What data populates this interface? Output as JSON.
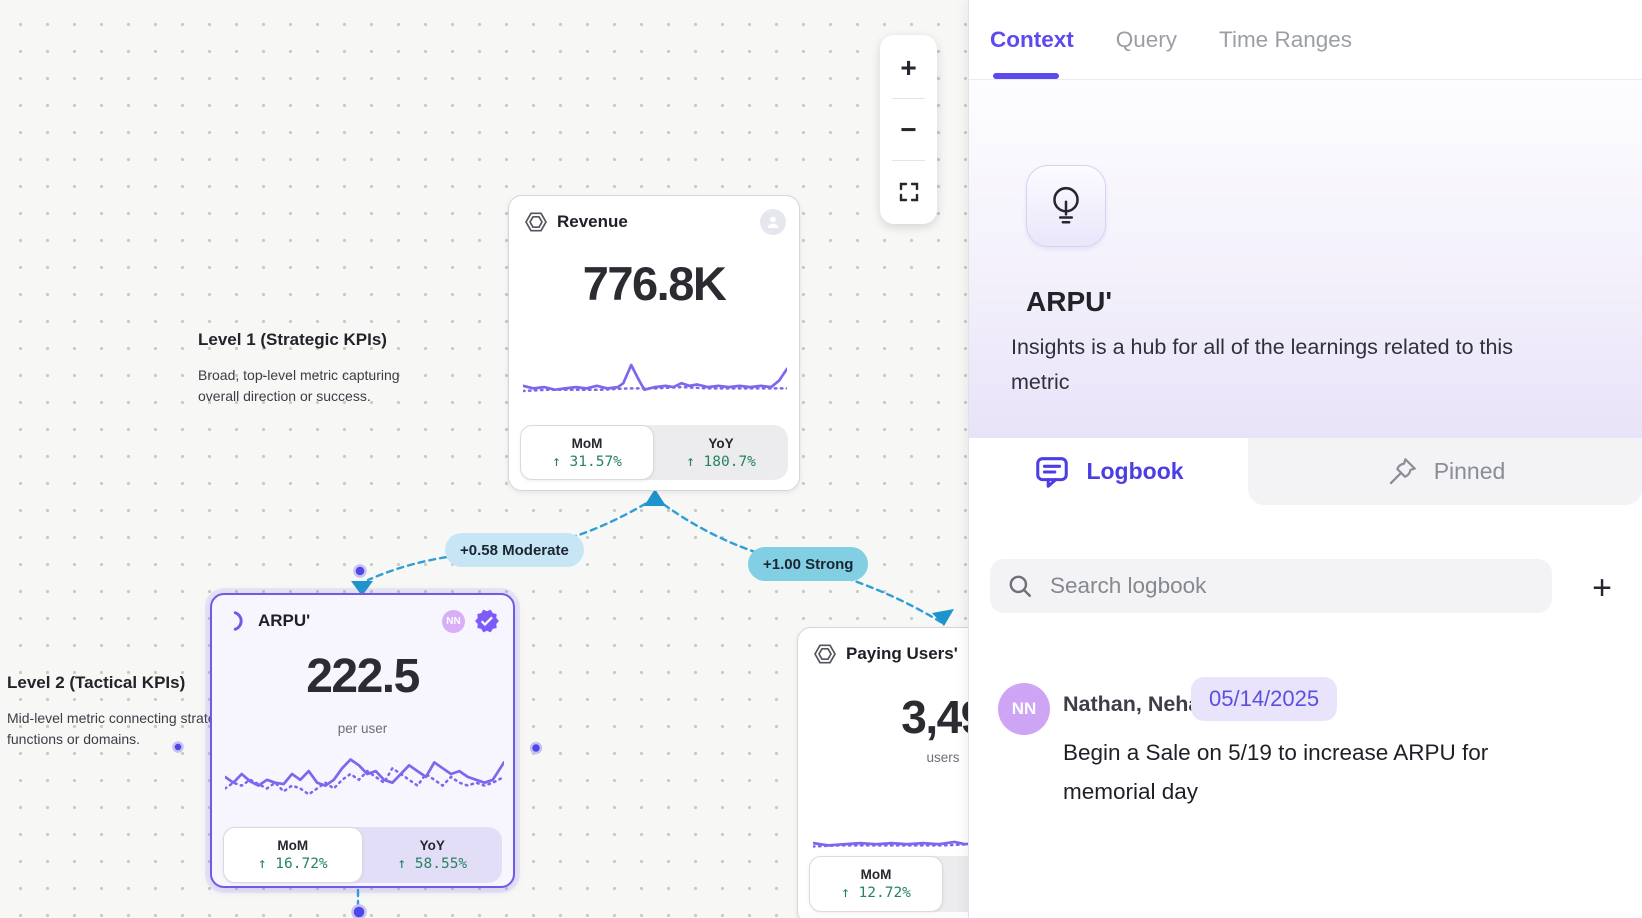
{
  "canvas": {
    "zoom_controls": {
      "zoom_in": "+",
      "zoom_out": "−"
    },
    "levels": [
      {
        "title": "Level 1 (Strategic KPIs)",
        "description": "Broad, top-level metric capturing overall direction or success."
      },
      {
        "title": "Level 2 (Tactical KPIs)",
        "description": "Mid-level metric connecting strategy to functions or domains."
      }
    ],
    "cards": {
      "revenue": {
        "title": "Revenue",
        "value": "776.8K",
        "mom_label": "MoM",
        "mom_value": "↑ 31.57%",
        "yoy_label": "YoY",
        "yoy_value": "↑ 180.7%",
        "spark_solid": [
          [
            0,
            26
          ],
          [
            4,
            28
          ],
          [
            8,
            27
          ],
          [
            12,
            29
          ],
          [
            16,
            28
          ],
          [
            20,
            27
          ],
          [
            24,
            28
          ],
          [
            28,
            26
          ],
          [
            32,
            28
          ],
          [
            36,
            27
          ],
          [
            38,
            24
          ],
          [
            41,
            10
          ],
          [
            44,
            22
          ],
          [
            46,
            29
          ],
          [
            50,
            27
          ],
          [
            54,
            26
          ],
          [
            57,
            27
          ],
          [
            60,
            24
          ],
          [
            63,
            26
          ],
          [
            66,
            25
          ],
          [
            70,
            27
          ],
          [
            74,
            26
          ],
          [
            78,
            27
          ],
          [
            82,
            26
          ],
          [
            86,
            27
          ],
          [
            90,
            26
          ],
          [
            94,
            27
          ],
          [
            97,
            22
          ],
          [
            100,
            13
          ]
        ],
        "spark_dotted": [
          [
            0,
            30
          ],
          [
            10,
            29
          ],
          [
            20,
            29
          ],
          [
            30,
            29
          ],
          [
            40,
            28
          ],
          [
            50,
            28
          ],
          [
            60,
            27
          ],
          [
            70,
            28
          ],
          [
            80,
            28
          ],
          [
            90,
            28
          ],
          [
            100,
            28
          ]
        ]
      },
      "arpu": {
        "title": "ARPU'",
        "value": "222.5",
        "unit": "per user",
        "owner_badge": "NN",
        "mom_label": "MoM",
        "mom_value": "↑ 16.72%",
        "yoy_label": "YoY",
        "yoy_value": "↑ 58.55%",
        "spark_solid": [
          [
            0,
            22
          ],
          [
            3,
            26
          ],
          [
            6,
            20
          ],
          [
            9,
            25
          ],
          [
            12,
            28
          ],
          [
            15,
            24
          ],
          [
            18,
            26
          ],
          [
            21,
            27
          ],
          [
            24,
            20
          ],
          [
            27,
            24
          ],
          [
            30,
            18
          ],
          [
            33,
            26
          ],
          [
            36,
            28
          ],
          [
            39,
            24
          ],
          [
            42,
            16
          ],
          [
            45,
            10
          ],
          [
            48,
            14
          ],
          [
            51,
            20
          ],
          [
            54,
            18
          ],
          [
            57,
            24
          ],
          [
            60,
            26
          ],
          [
            63,
            20
          ],
          [
            66,
            14
          ],
          [
            69,
            18
          ],
          [
            72,
            22
          ],
          [
            75,
            12
          ],
          [
            78,
            16
          ],
          [
            81,
            20
          ],
          [
            84,
            18
          ],
          [
            87,
            22
          ],
          [
            90,
            24
          ],
          [
            93,
            26
          ],
          [
            96,
            24
          ],
          [
            100,
            12
          ]
        ],
        "spark_dotted": [
          [
            0,
            30
          ],
          [
            3,
            26
          ],
          [
            6,
            28
          ],
          [
            9,
            24
          ],
          [
            12,
            27
          ],
          [
            15,
            30
          ],
          [
            18,
            26
          ],
          [
            21,
            32
          ],
          [
            24,
            28
          ],
          [
            27,
            30
          ],
          [
            30,
            34
          ],
          [
            33,
            30
          ],
          [
            36,
            26
          ],
          [
            39,
            30
          ],
          [
            42,
            24
          ],
          [
            45,
            20
          ],
          [
            48,
            24
          ],
          [
            51,
            18
          ],
          [
            54,
            22
          ],
          [
            57,
            26
          ],
          [
            60,
            16
          ],
          [
            63,
            20
          ],
          [
            66,
            24
          ],
          [
            69,
            28
          ],
          [
            72,
            20
          ],
          [
            75,
            24
          ],
          [
            78,
            28
          ],
          [
            81,
            22
          ],
          [
            84,
            26
          ],
          [
            87,
            28
          ],
          [
            90,
            26
          ],
          [
            93,
            28
          ],
          [
            96,
            26
          ],
          [
            100,
            22
          ]
        ]
      },
      "paying_users": {
        "title": "Paying Users'",
        "value": "3,49",
        "unit": "users",
        "mom_label": "MoM",
        "mom_value": "↑ 12.72%",
        "spark_solid": [
          [
            0,
            27
          ],
          [
            6,
            29
          ],
          [
            12,
            28
          ],
          [
            18,
            27
          ],
          [
            24,
            28
          ],
          [
            30,
            27
          ],
          [
            36,
            28
          ],
          [
            42,
            27
          ],
          [
            48,
            28
          ],
          [
            54,
            26
          ],
          [
            58,
            28
          ],
          [
            62,
            27
          ],
          [
            66,
            28
          ],
          [
            70,
            27
          ],
          [
            74,
            10
          ],
          [
            78,
            24
          ],
          [
            82,
            28
          ],
          [
            88,
            27
          ],
          [
            94,
            28
          ],
          [
            100,
            27
          ]
        ],
        "spark_dotted": [
          [
            0,
            30
          ],
          [
            10,
            29
          ],
          [
            20,
            29
          ],
          [
            30,
            29
          ],
          [
            40,
            29
          ],
          [
            50,
            29
          ],
          [
            60,
            28
          ],
          [
            70,
            28
          ],
          [
            80,
            28
          ],
          [
            90,
            28
          ],
          [
            100,
            28
          ]
        ]
      }
    },
    "edges": [
      {
        "label": "+0.58 Moderate",
        "value": "+0.58",
        "strength": "Moderate"
      },
      {
        "label": "+1.00 Strong",
        "value": "+1.00",
        "strength": "Strong"
      }
    ]
  },
  "panel": {
    "tabs": [
      {
        "label": "Context",
        "active": true
      },
      {
        "label": "Query",
        "active": false
      },
      {
        "label": "Time Ranges",
        "active": false
      }
    ],
    "header": {
      "title": "ARPU'",
      "description": "Insights is a hub for all of the learnings related to this metric"
    },
    "sections": [
      {
        "label": "Logbook",
        "active": true
      },
      {
        "label": "Pinned",
        "active": false
      }
    ],
    "search": {
      "placeholder": "Search logbook"
    },
    "add_button": "+",
    "entries": [
      {
        "avatar": "NN",
        "author": "Nathan, Neha",
        "date": "05/14/2025",
        "text": "Begin a Sale on 5/19 to increase ARPU for memorial day"
      }
    ]
  },
  "colors": {
    "accent_indigo": "#5b4af0",
    "edge_blue": "#2e9fd6",
    "pill_moderate_bg": "#c6e5f5",
    "pill_strong_bg": "#82cfe4",
    "positive_green": "#27835f",
    "sparkline_purple": "#7b68ee",
    "arpu_card_border": "#6d5ce8",
    "date_pill_bg": "#e9e4fb",
    "avatar_purple": "#cea5f5"
  }
}
